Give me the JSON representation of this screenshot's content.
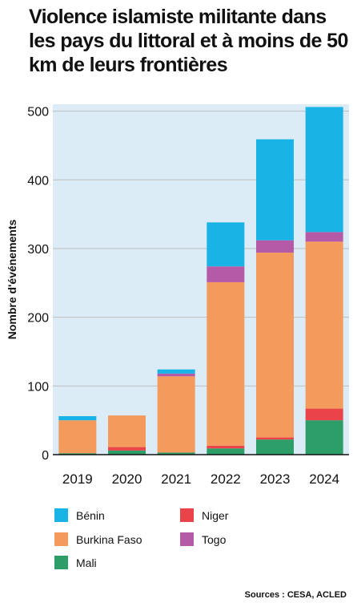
{
  "title": "Violence islamiste militante dans les pays du littoral et à moins de 50 km de leurs frontières",
  "source": "Sources : CESA, ACLED",
  "colors": {
    "Bénin": "#1ab3e6",
    "Burkina Faso": "#f39a5c",
    "Mali": "#2e9e69",
    "Niger": "#e8444a",
    "Togo": "#b45aa6"
  },
  "chart_data": {
    "type": "bar",
    "stacked": true,
    "categories": [
      "2019",
      "2020",
      "2021",
      "2022",
      "2023",
      "2024"
    ],
    "ylabel": "Nombre d'événements",
    "ylim": [
      0,
      510
    ],
    "yticks": [
      0,
      100,
      200,
      300,
      400,
      500
    ],
    "grid": true,
    "legend_position": "bottom",
    "series": [
      {
        "name": "Mali",
        "values": [
          2,
          6,
          3,
          9,
          22,
          50
        ]
      },
      {
        "name": "Niger",
        "values": [
          0,
          5,
          0,
          4,
          3,
          17
        ]
      },
      {
        "name": "Burkina Faso",
        "values": [
          48,
          46,
          111,
          238,
          269,
          243
        ]
      },
      {
        "name": "Togo",
        "values": [
          0,
          0,
          4,
          23,
          18,
          14
        ]
      },
      {
        "name": "Bénin",
        "values": [
          6,
          0,
          6,
          64,
          147,
          182
        ]
      }
    ]
  },
  "legend": [
    {
      "name": "Bénin"
    },
    {
      "name": "Burkina Faso"
    },
    {
      "name": "Mali"
    },
    {
      "name": "Niger"
    },
    {
      "name": "Togo"
    }
  ]
}
